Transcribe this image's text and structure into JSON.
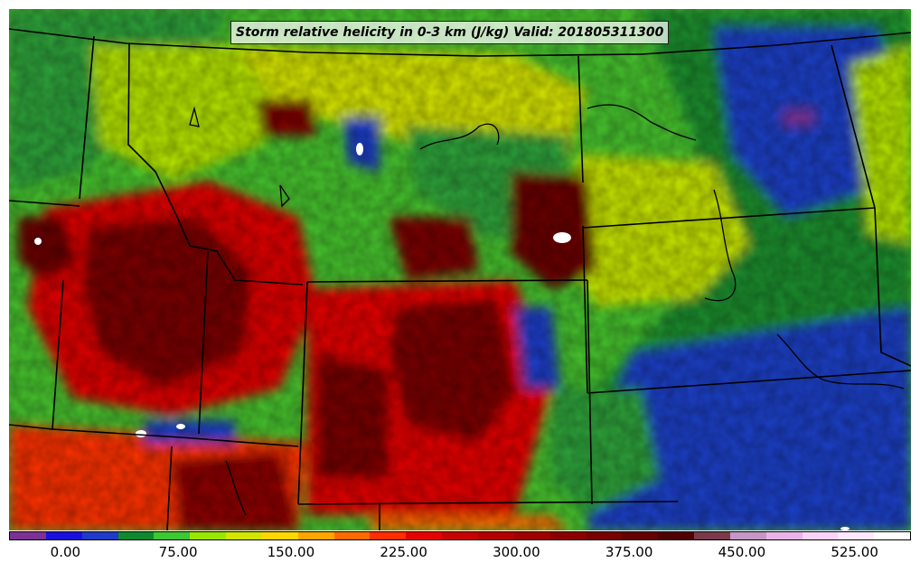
{
  "title": "Storm relative helicity in 0-3 km (J/kg) Valid: 201805311300",
  "map": {
    "variable": "Storm relative helicity in 0-3 km",
    "units": "J/kg",
    "valid_time": "201805311300",
    "region_description": "Northern and central Rocky Mountain and High Plains states",
    "basemap_elements": [
      "state-boundaries",
      "country-border",
      "lakes-and-rivers"
    ]
  },
  "colorbar": {
    "colors": [
      "#7b3294",
      "#1a10dc",
      "#1e3cc8",
      "#0d8a2f",
      "#3cc832",
      "#9ae600",
      "#d2e600",
      "#ffd700",
      "#ffa500",
      "#ff6a00",
      "#ff2d00",
      "#e60000",
      "#c80000",
      "#b40000",
      "#a00000",
      "#8c0000",
      "#780000",
      "#640000",
      "#500000",
      "#7a3a4a",
      "#c497c4",
      "#e8b4e8",
      "#f7d3f7",
      "#fde8fd",
      "#ffffff"
    ],
    "tick_labels": [
      "0.00",
      "75.00",
      "150.00",
      "225.00",
      "300.00",
      "375.00",
      "450.00",
      "525.00"
    ],
    "tick_values": [
      0,
      75,
      150,
      225,
      300,
      375,
      450,
      525
    ],
    "range": [
      -37.5,
      562.5
    ]
  }
}
